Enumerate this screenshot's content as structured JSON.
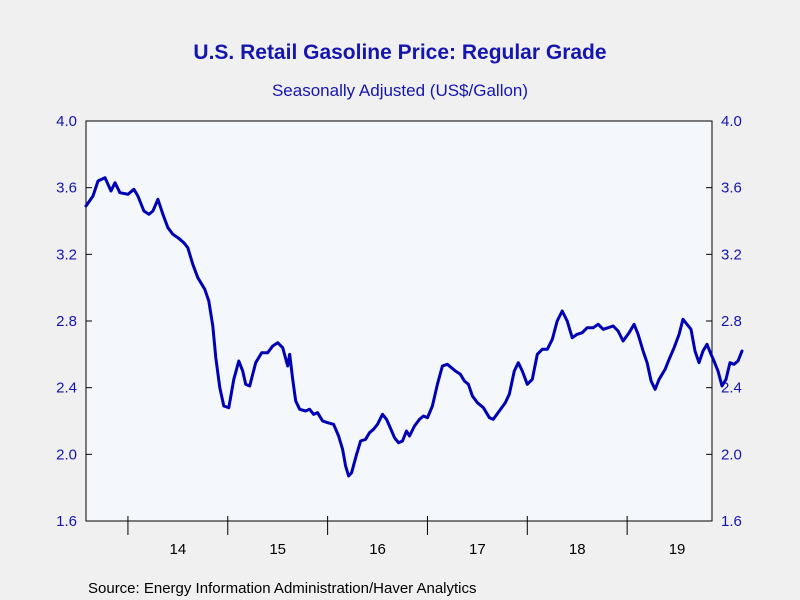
{
  "colors": {
    "background": "#f0f0f0",
    "plot_background": "#f4f8fd",
    "series_line": "#0000b4",
    "text_accent": "#1515b0"
  },
  "chart_data": {
    "type": "line",
    "title": "U.S. Retail Gasoline Price: Regular Grade",
    "subtitle": "Seasonally Adjusted  (US$/Gallon)",
    "source": "Source:  Energy Information Administration/Haver Analytics",
    "ylim": [
      1.6,
      4.0
    ],
    "y_ticks": [
      "4.0",
      "3.6",
      "3.2",
      "2.8",
      "2.4",
      "2.0",
      "1.6"
    ],
    "y_ticks_right": [
      "4.0",
      "3.6",
      "3.2",
      "2.8",
      "2.4",
      "2.0",
      "1.6"
    ],
    "xlim": [
      2013.58,
      2019.85
    ],
    "x_tick_labels": [
      "14",
      "15",
      "16",
      "17",
      "18",
      "19"
    ],
    "grid": false,
    "series": [
      {
        "values": [
          [
            2013.58,
            3.49
          ],
          [
            2013.65,
            3.55
          ],
          [
            2013.7,
            3.64
          ],
          [
            2013.77,
            3.66
          ],
          [
            2013.83,
            3.58
          ],
          [
            2013.87,
            3.63
          ],
          [
            2013.92,
            3.57
          ],
          [
            2014.0,
            3.56
          ],
          [
            2014.06,
            3.59
          ],
          [
            2014.1,
            3.55
          ],
          [
            2014.16,
            3.46
          ],
          [
            2014.21,
            3.44
          ],
          [
            2014.25,
            3.46
          ],
          [
            2014.3,
            3.53
          ],
          [
            2014.35,
            3.44
          ],
          [
            2014.4,
            3.36
          ],
          [
            2014.45,
            3.32
          ],
          [
            2014.5,
            3.3
          ],
          [
            2014.56,
            3.27
          ],
          [
            2014.6,
            3.24
          ],
          [
            2014.65,
            3.14
          ],
          [
            2014.7,
            3.06
          ],
          [
            2014.77,
            2.99
          ],
          [
            2014.81,
            2.92
          ],
          [
            2014.85,
            2.77
          ],
          [
            2014.88,
            2.58
          ],
          [
            2014.92,
            2.4
          ],
          [
            2014.96,
            2.29
          ],
          [
            2015.01,
            2.28
          ],
          [
            2015.06,
            2.45
          ],
          [
            2015.11,
            2.56
          ],
          [
            2015.15,
            2.5
          ],
          [
            2015.18,
            2.42
          ],
          [
            2015.22,
            2.41
          ],
          [
            2015.28,
            2.55
          ],
          [
            2015.34,
            2.61
          ],
          [
            2015.4,
            2.61
          ],
          [
            2015.45,
            2.65
          ],
          [
            2015.5,
            2.67
          ],
          [
            2015.55,
            2.64
          ],
          [
            2015.6,
            2.53
          ],
          [
            2015.62,
            2.6
          ],
          [
            2015.65,
            2.45
          ],
          [
            2015.68,
            2.32
          ],
          [
            2015.72,
            2.27
          ],
          [
            2015.78,
            2.26
          ],
          [
            2015.82,
            2.27
          ],
          [
            2015.86,
            2.24
          ],
          [
            2015.9,
            2.25
          ],
          [
            2015.95,
            2.2
          ],
          [
            2016.0,
            2.19
          ],
          [
            2016.06,
            2.18
          ],
          [
            2016.11,
            2.11
          ],
          [
            2016.15,
            2.03
          ],
          [
            2016.18,
            1.93
          ],
          [
            2016.21,
            1.87
          ],
          [
            2016.24,
            1.89
          ],
          [
            2016.29,
            2.0
          ],
          [
            2016.33,
            2.08
          ],
          [
            2016.38,
            2.09
          ],
          [
            2016.42,
            2.13
          ],
          [
            2016.46,
            2.15
          ],
          [
            2016.5,
            2.18
          ],
          [
            2016.55,
            2.24
          ],
          [
            2016.59,
            2.21
          ],
          [
            2016.62,
            2.17
          ],
          [
            2016.67,
            2.1
          ],
          [
            2016.71,
            2.07
          ],
          [
            2016.75,
            2.08
          ],
          [
            2016.79,
            2.14
          ],
          [
            2016.82,
            2.11
          ],
          [
            2016.87,
            2.17
          ],
          [
            2016.92,
            2.21
          ],
          [
            2016.96,
            2.23
          ],
          [
            2017.0,
            2.22
          ],
          [
            2017.05,
            2.29
          ],
          [
            2017.1,
            2.42
          ],
          [
            2017.15,
            2.53
          ],
          [
            2017.2,
            2.54
          ],
          [
            2017.24,
            2.52
          ],
          [
            2017.28,
            2.5
          ],
          [
            2017.33,
            2.48
          ],
          [
            2017.37,
            2.44
          ],
          [
            2017.41,
            2.42
          ],
          [
            2017.45,
            2.35
          ],
          [
            2017.5,
            2.31
          ],
          [
            2017.56,
            2.28
          ],
          [
            2017.62,
            2.22
          ],
          [
            2017.66,
            2.21
          ],
          [
            2017.72,
            2.26
          ],
          [
            2017.78,
            2.31
          ],
          [
            2017.82,
            2.36
          ],
          [
            2017.87,
            2.5
          ],
          [
            2017.91,
            2.55
          ],
          [
            2017.95,
            2.5
          ],
          [
            2018.0,
            2.42
          ],
          [
            2018.05,
            2.45
          ],
          [
            2018.1,
            2.6
          ],
          [
            2018.15,
            2.63
          ],
          [
            2018.2,
            2.63
          ],
          [
            2018.25,
            2.69
          ],
          [
            2018.3,
            2.8
          ],
          [
            2018.35,
            2.86
          ],
          [
            2018.4,
            2.8
          ],
          [
            2018.45,
            2.7
          ],
          [
            2018.5,
            2.72
          ],
          [
            2018.55,
            2.73
          ],
          [
            2018.6,
            2.76
          ],
          [
            2018.66,
            2.76
          ],
          [
            2018.71,
            2.78
          ],
          [
            2018.76,
            2.75
          ],
          [
            2018.81,
            2.76
          ],
          [
            2018.86,
            2.77
          ],
          [
            2018.91,
            2.74
          ],
          [
            2018.96,
            2.68
          ],
          [
            2019.02,
            2.73
          ],
          [
            2019.07,
            2.78
          ],
          [
            2019.11,
            2.72
          ],
          [
            2019.16,
            2.62
          ],
          [
            2019.2,
            2.55
          ],
          [
            2019.24,
            2.44
          ],
          [
            2019.28,
            2.39
          ],
          [
            2019.32,
            2.45
          ],
          [
            2019.38,
            2.51
          ],
          [
            2019.42,
            2.57
          ],
          [
            2019.47,
            2.64
          ],
          [
            2019.52,
            2.72
          ],
          [
            2019.56,
            2.81
          ],
          [
            2019.6,
            2.78
          ],
          [
            2019.64,
            2.75
          ],
          [
            2019.68,
            2.62
          ],
          [
            2019.72,
            2.55
          ],
          [
            2019.76,
            2.62
          ],
          [
            2019.8,
            2.66
          ],
          [
            2019.84,
            2.6
          ],
          [
            2019.87,
            2.56
          ],
          [
            2019.91,
            2.5
          ],
          [
            2019.95,
            2.41
          ],
          [
            2019.99,
            2.45
          ],
          [
            2020.03,
            2.55
          ],
          [
            2020.07,
            2.54
          ],
          [
            2020.11,
            2.56
          ],
          [
            2020.15,
            2.62
          ]
        ]
      }
    ]
  }
}
